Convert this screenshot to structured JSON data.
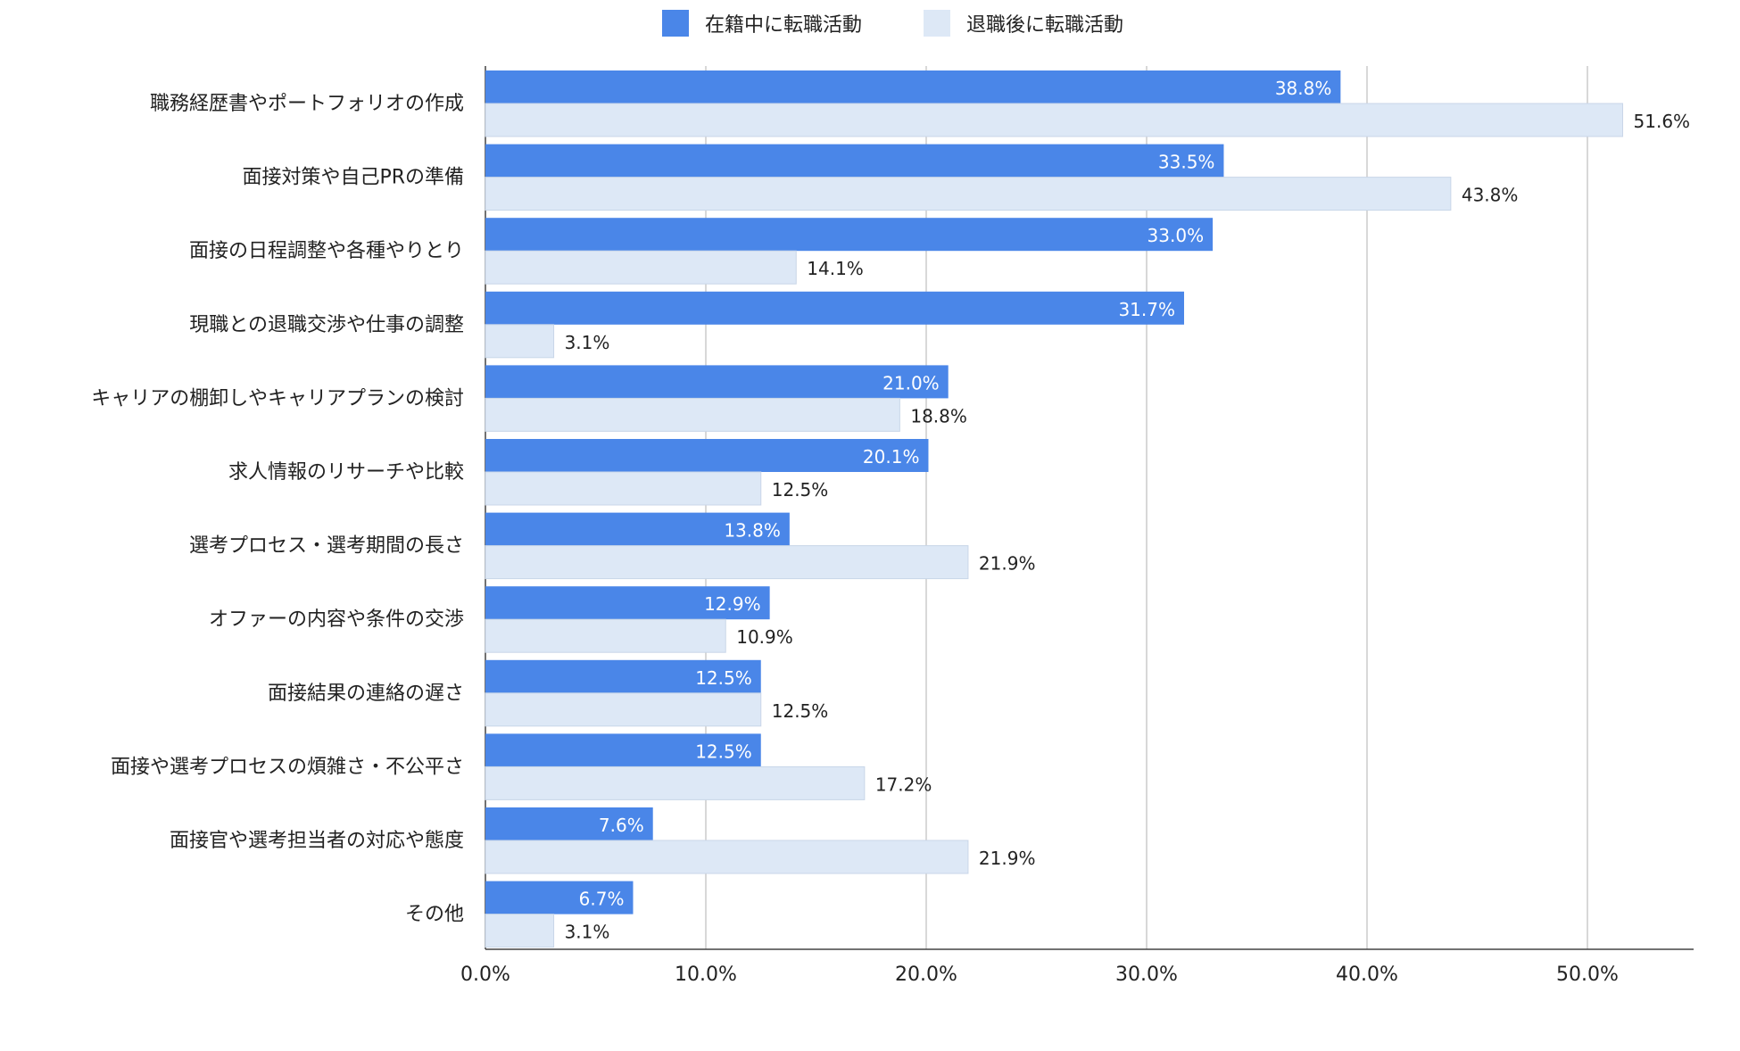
{
  "chart_data": {
    "type": "bar",
    "orientation": "horizontal",
    "categories": [
      "職務経歴書やポートフォリオの作成",
      "面接対策や自己PRの準備",
      "面接の日程調整や各種やりとり",
      "現職との退職交渉や仕事の調整",
      "キャリアの棚卸しやキャリアプランの検討",
      "求人情報のリサーチや比較",
      "選考プロセス・選考期間の長さ",
      "オファーの内容や条件の交渉",
      "面接結果の連絡の遅さ",
      "面接や選考プロセスの煩雑さ・不公平さ",
      "面接官や選考担当者の対応や態度",
      "その他"
    ],
    "series": [
      {
        "name": "在籍中に転職活動",
        "color": "#4a86e8",
        "values": [
          38.8,
          33.5,
          33.0,
          31.7,
          21.0,
          20.1,
          13.8,
          12.9,
          12.5,
          12.5,
          7.6,
          6.7
        ],
        "labels": [
          "38.8%",
          "33.5%",
          "33.0%",
          "31.7%",
          "21.0%",
          "20.1%",
          "13.8%",
          "12.9%",
          "12.5%",
          "12.5%",
          "7.6%",
          "6.7%"
        ]
      },
      {
        "name": "退職後に転職活動",
        "color": "#dde8f6",
        "values": [
          51.6,
          43.8,
          14.1,
          3.1,
          18.8,
          12.5,
          21.9,
          10.9,
          12.5,
          17.2,
          21.9,
          3.1
        ],
        "labels": [
          "51.6%",
          "43.8%",
          "14.1%",
          "3.1%",
          "18.8%",
          "12.5%",
          "21.9%",
          "10.9%",
          "12.5%",
          "17.2%",
          "21.9%",
          "3.1%"
        ]
      }
    ],
    "x_ticks": [
      "0.0%",
      "10.0%",
      "20.0%",
      "30.0%",
      "40.0%",
      "50.0%"
    ],
    "xlim": [
      0,
      55
    ],
    "grid": true,
    "legend_position": "top"
  }
}
